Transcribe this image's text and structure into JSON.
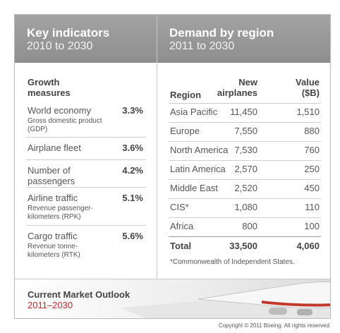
{
  "left": {
    "title": "Key indicators",
    "subtitle": "2010 to 2030",
    "heading": "Growth measures",
    "rows": [
      {
        "label": "World economy",
        "value": "3.3%",
        "note": "Gross domestic product (GDP)"
      },
      {
        "label": "Airplane fleet",
        "value": "3.6%"
      },
      {
        "label": "Number of passengers",
        "value": "4.2%"
      },
      {
        "label": "Airline traffic",
        "value": "5.1%",
        "note": "Revenue passenger-kilometers (RPK)"
      },
      {
        "label": "Cargo traffic",
        "value": "5.6%",
        "note": "Revenue tonne-kilometers (RTK)"
      }
    ]
  },
  "right": {
    "title": "Demand by region",
    "subtitle": "2011 to 2030",
    "columns": [
      "Region",
      "New airplanes",
      "Value ($B)"
    ],
    "rows": [
      [
        "Asia Pacific",
        "11,450",
        "1,510"
      ],
      [
        "Europe",
        "7,550",
        "880"
      ],
      [
        "North America",
        "7,530",
        "760"
      ],
      [
        "Latin America",
        "2,570",
        "250"
      ],
      [
        "Middle East",
        "2,520",
        "450"
      ],
      [
        "CIS*",
        "1,080",
        "110"
      ],
      [
        "Africa",
        "800",
        "100"
      ]
    ],
    "total": [
      "Total",
      "33,500",
      "4,060"
    ],
    "footnote": "*Commonwealth of Independent States."
  },
  "footer": {
    "title": "Current Market Outlook",
    "years": "2011–2030",
    "copyright": "Copyright © 2011 Boeing. All rights reserved."
  }
}
